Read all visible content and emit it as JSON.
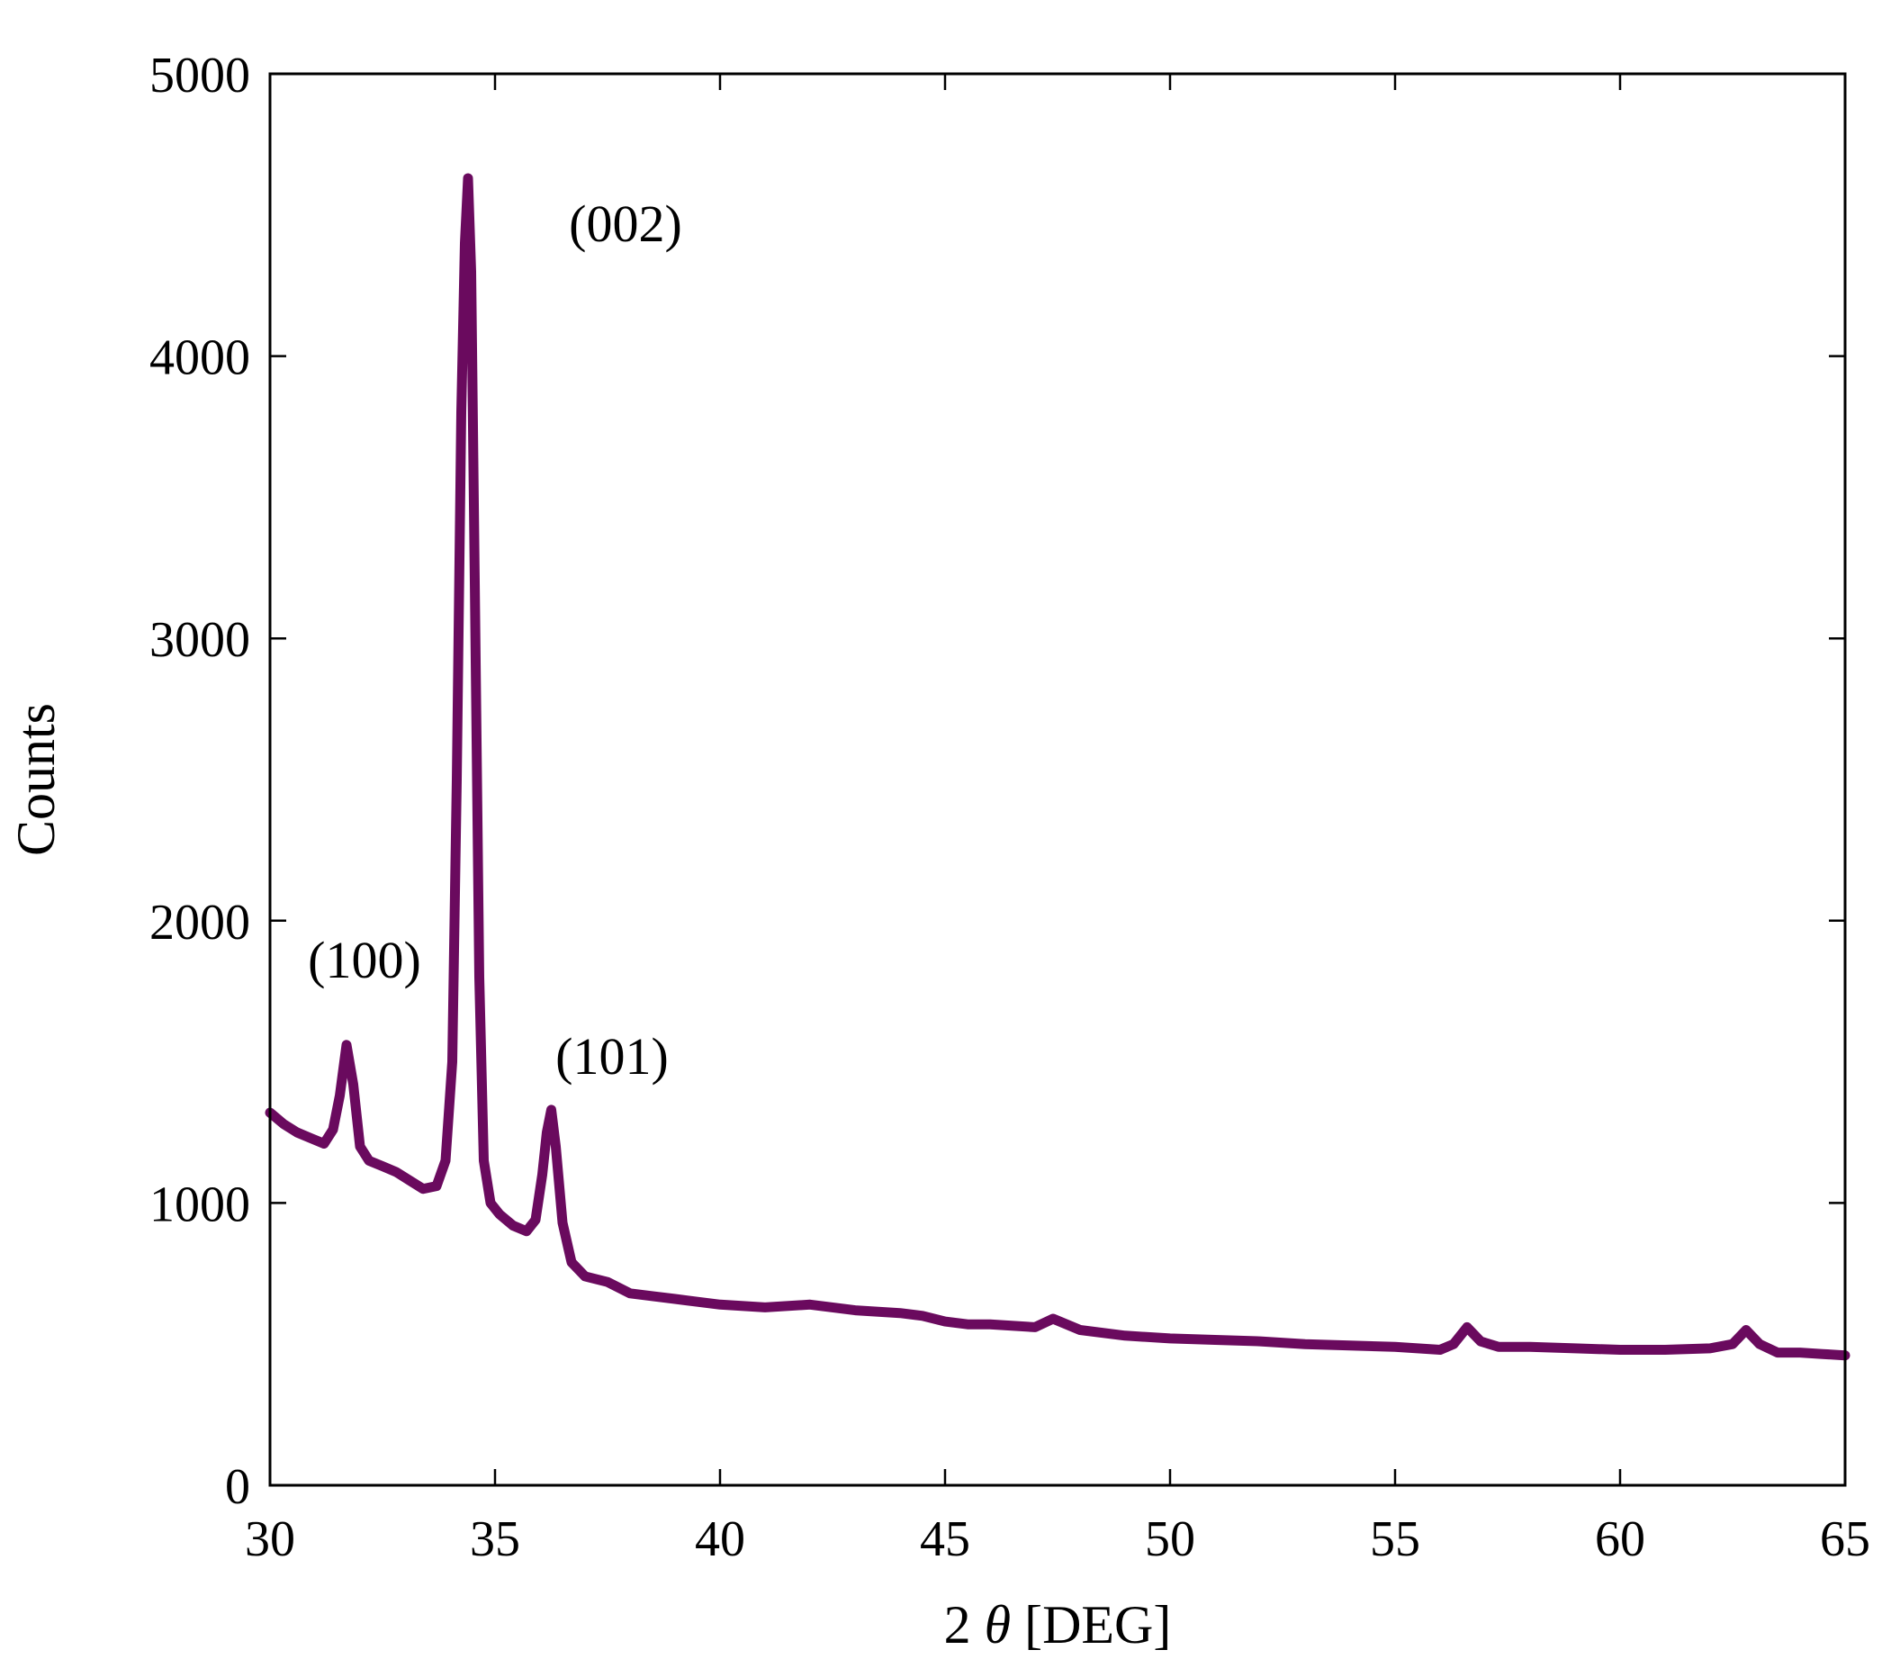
{
  "chart_data": {
    "type": "line",
    "xlabel": "2 θ [DEG]",
    "xlabel_parts": {
      "prefix": "2 ",
      "symbol": "θ",
      "suffix": " [DEG]"
    },
    "ylabel": "Counts",
    "xlim": [
      30,
      65
    ],
    "ylim": [
      0,
      5000
    ],
    "xticks": [
      30,
      35,
      40,
      45,
      50,
      55,
      60,
      65
    ],
    "yticks": [
      0,
      1000,
      2000,
      3000,
      4000,
      5000
    ],
    "grid": false,
    "line_color": "#6a0a5e",
    "annotations": [
      {
        "text": "(100)",
        "x": 31.7,
        "y": 1560
      },
      {
        "text": "(002)",
        "x": 34.4,
        "y": 4630
      },
      {
        "text": "(101)",
        "x": 36.2,
        "y": 1330
      }
    ],
    "series": [
      {
        "x": [
          30.0,
          30.3,
          30.6,
          30.9,
          31.2,
          31.4,
          31.55,
          31.7,
          31.85,
          32.0,
          32.2,
          32.5,
          32.8,
          33.1,
          33.4,
          33.7,
          33.9,
          34.05,
          34.15,
          34.25,
          34.33,
          34.4,
          34.47,
          34.55,
          34.65,
          34.75,
          34.9,
          35.1,
          35.4,
          35.7,
          35.9,
          36.05,
          36.15,
          36.25,
          36.35,
          36.5,
          36.7,
          37.0,
          37.5,
          38.0,
          38.5,
          39.0,
          39.5,
          40.0,
          41.0,
          42.0,
          43.0,
          44.0,
          44.5,
          45.0,
          45.5,
          46.0,
          47.0,
          47.4,
          48.0,
          49.0,
          50.0,
          51.0,
          52.0,
          53.0,
          54.0,
          55.0,
          55.5,
          56.0,
          56.3,
          56.6,
          56.9,
          57.3,
          58.0,
          59.0,
          60.0,
          61.0,
          62.0,
          62.5,
          62.8,
          63.1,
          63.5,
          64.0,
          64.5,
          65.0
        ],
        "values": [
          1320,
          1280,
          1250,
          1230,
          1210,
          1260,
          1380,
          1560,
          1420,
          1200,
          1150,
          1130,
          1110,
          1080,
          1050,
          1060,
          1150,
          1500,
          2500,
          3800,
          4400,
          4630,
          4300,
          3200,
          1800,
          1150,
          1000,
          960,
          920,
          900,
          940,
          1100,
          1250,
          1330,
          1200,
          930,
          790,
          740,
          720,
          680,
          670,
          660,
          650,
          640,
          630,
          640,
          620,
          610,
          600,
          580,
          570,
          570,
          560,
          590,
          550,
          530,
          520,
          515,
          510,
          500,
          495,
          490,
          485,
          480,
          500,
          560,
          510,
          490,
          490,
          485,
          480,
          480,
          485,
          500,
          550,
          500,
          470,
          470,
          465,
          460
        ]
      }
    ]
  }
}
